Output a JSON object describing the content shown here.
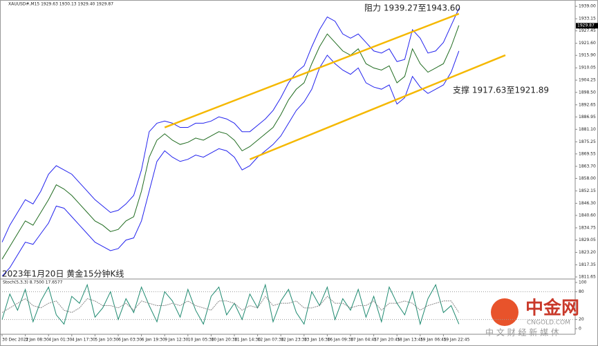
{
  "chart_data": [
    {
      "type": "line",
      "header": "XAUUSD#,M15  1929.63 1930.13 1929.40 1929.87",
      "caption": "2023年1月20日 黄金15分钟K线",
      "annotations": [
        "阻力 1939.27至1943.60",
        "支撑 1917.63至1921.89"
      ],
      "last": 1929.87,
      "ylim": [
        1811,
        1941
      ],
      "yticks": [
        {
          "value": 1939.0,
          "label": "1939.00"
        },
        {
          "value": 1933.15,
          "label": "1933.15"
        },
        {
          "value": 1927.45,
          "label": "1927.45"
        },
        {
          "value": 1921.6,
          "label": "1921.60"
        },
        {
          "value": 1915.9,
          "label": "1915.90"
        },
        {
          "value": 1910.05,
          "label": "1910.05"
        },
        {
          "value": 1904.25,
          "label": "1904.25"
        },
        {
          "value": 1898.5,
          "label": "1898.50"
        },
        {
          "value": 1892.65,
          "label": "1892.65"
        },
        {
          "value": 1886.95,
          "label": "1886.95"
        },
        {
          "value": 1881.1,
          "label": "1881.10"
        },
        {
          "value": 1875.25,
          "label": "1875.25"
        },
        {
          "value": 1869.55,
          "label": "1869.55"
        },
        {
          "value": 1863.7,
          "label": "1863.70"
        },
        {
          "value": 1858.0,
          "label": "1858.00"
        },
        {
          "value": 1852.15,
          "label": "1852.15"
        },
        {
          "value": 1846.3,
          "label": "1846.30"
        },
        {
          "value": 1840.6,
          "label": "1840.60"
        },
        {
          "value": 1834.75,
          "label": "1834.75"
        },
        {
          "value": 1829.05,
          "label": "1829.05"
        },
        {
          "value": 1823.2,
          "label": "1823.20"
        },
        {
          "value": 1817.35,
          "label": "1817.35"
        },
        {
          "value": 1811.65,
          "label": "1811.65"
        }
      ],
      "series": [
        {
          "color": "#1f6b1f",
          "values": [
            1820,
            1826,
            1832,
            1838,
            1836,
            1842,
            1848,
            1855,
            1853,
            1850,
            1846,
            1842,
            1838,
            1836,
            1833,
            1834,
            1838,
            1840,
            1852,
            1868,
            1876,
            1879,
            1876,
            1874,
            1875,
            1877,
            1876,
            1878,
            1880,
            1879,
            1876,
            1871,
            1873,
            1876,
            1879,
            1882,
            1888,
            1895,
            1900,
            1903,
            1912,
            1920,
            1926,
            1922,
            1918,
            1916,
            1919,
            1912,
            1910,
            1909,
            1911,
            1903,
            1906,
            1919,
            1912,
            1908,
            1910,
            1912,
            1920,
            1930
          ]
        },
        {
          "color": "#2222ee",
          "values": [
            1828,
            1836,
            1842,
            1848,
            1846,
            1852,
            1860,
            1864,
            1862,
            1860,
            1856,
            1852,
            1848,
            1845,
            1842,
            1843,
            1846,
            1850,
            1862,
            1880,
            1884,
            1885,
            1884,
            1882,
            1882,
            1884,
            1884,
            1885,
            1887,
            1886,
            1884,
            1880,
            1880,
            1883,
            1886,
            1890,
            1896,
            1903,
            1908,
            1911,
            1920,
            1928,
            1934,
            1932,
            1926,
            1924,
            1926,
            1922,
            1918,
            1917,
            1919,
            1913,
            1914,
            1928,
            1924,
            1917,
            1918,
            1922,
            1930,
            1938
          ]
        },
        {
          "color": "#2222ee",
          "values": [
            1812,
            1816,
            1822,
            1828,
            1827,
            1832,
            1837,
            1845,
            1844,
            1840,
            1836,
            1832,
            1828,
            1826,
            1824,
            1825,
            1829,
            1830,
            1838,
            1852,
            1866,
            1871,
            1868,
            1866,
            1867,
            1869,
            1868,
            1870,
            1872,
            1871,
            1868,
            1862,
            1864,
            1868,
            1871,
            1874,
            1878,
            1884,
            1890,
            1894,
            1900,
            1910,
            1916,
            1912,
            1909,
            1907,
            1910,
            1903,
            1901,
            1900,
            1902,
            1893,
            1896,
            1906,
            1901,
            1898,
            1900,
            1902,
            1908,
            1918
          ]
        }
      ],
      "channel": {
        "color": "#f5b800",
        "lines": [
          {
            "x": [
              21,
              59
            ],
            "values": [
              1882,
              1935.5
            ]
          },
          {
            "x": [
              32,
              65
            ],
            "values": [
              1867,
              1916
            ]
          }
        ]
      }
    },
    {
      "type": "line",
      "title": "Stoch(5,3,3) 8.7500 17.6577",
      "ylim": [
        0,
        100
      ],
      "yticks": [
        100,
        80,
        20,
        0
      ],
      "categories": [
        "30 Dec 2022",
        null,
        null,
        "3 Jan 08:30",
        null,
        null,
        "4 Jan 01:30",
        null,
        null,
        "4 Jan 17:30",
        null,
        null,
        "5 Jan 10:30",
        null,
        null,
        "6 Jan 03:30",
        null,
        null,
        "6 Jan 19:30",
        null,
        null,
        "9 Jan 12:30",
        null,
        null,
        "10 Jan 05:30",
        null,
        null,
        "10 Jan 20:30",
        null,
        null,
        "11 Jan 14:30",
        null,
        null,
        "12 Jan 07:30",
        null,
        null,
        "12 Jan 23:30",
        null,
        null,
        "13 Jan 16:30",
        null,
        null,
        "16 Jan 09:30",
        null,
        null,
        "17 Jan 04:45",
        null,
        null,
        "17 Jan 20:45",
        null,
        null,
        "18 Jan 13:45",
        null,
        null,
        "19 Jan 06:45",
        null,
        null,
        "19 Jan 22:45",
        null,
        null
      ],
      "series": [
        {
          "color": "#1f8a70",
          "values": [
            20,
            75,
            40,
            85,
            15,
            60,
            90,
            30,
            10,
            70,
            55,
            95,
            25,
            45,
            80,
            20,
            65,
            35,
            90,
            50,
            15,
            80,
            60,
            25,
            85,
            40,
            10,
            70,
            90,
            30,
            55,
            20,
            75,
            45,
            95,
            15,
            60,
            85,
            35,
            10,
            80,
            50,
            90,
            20,
            65,
            40,
            85,
            25,
            70,
            15,
            90,
            55,
            30,
            80,
            10,
            65,
            95,
            35,
            50,
            10
          ]
        },
        {
          "color": "#888888",
          "values": [
            35,
            45,
            55,
            65,
            50,
            45,
            55,
            60,
            40,
            35,
            45,
            65,
            60,
            50,
            50,
            45,
            55,
            40,
            60,
            55,
            50,
            50,
            55,
            50,
            60,
            50,
            45,
            40,
            60,
            60,
            55,
            40,
            50,
            45,
            70,
            50,
            55,
            55,
            60,
            45,
            45,
            50,
            70,
            55,
            55,
            45,
            50,
            50,
            60,
            40,
            55,
            55,
            60,
            55,
            40,
            50,
            55,
            60,
            60,
            35
          ]
        }
      ]
    }
  ],
  "logo": {
    "name": "中金网",
    "site": "CNGOLD.COM",
    "slogan": "中 文 财 经 新 媒 体"
  }
}
